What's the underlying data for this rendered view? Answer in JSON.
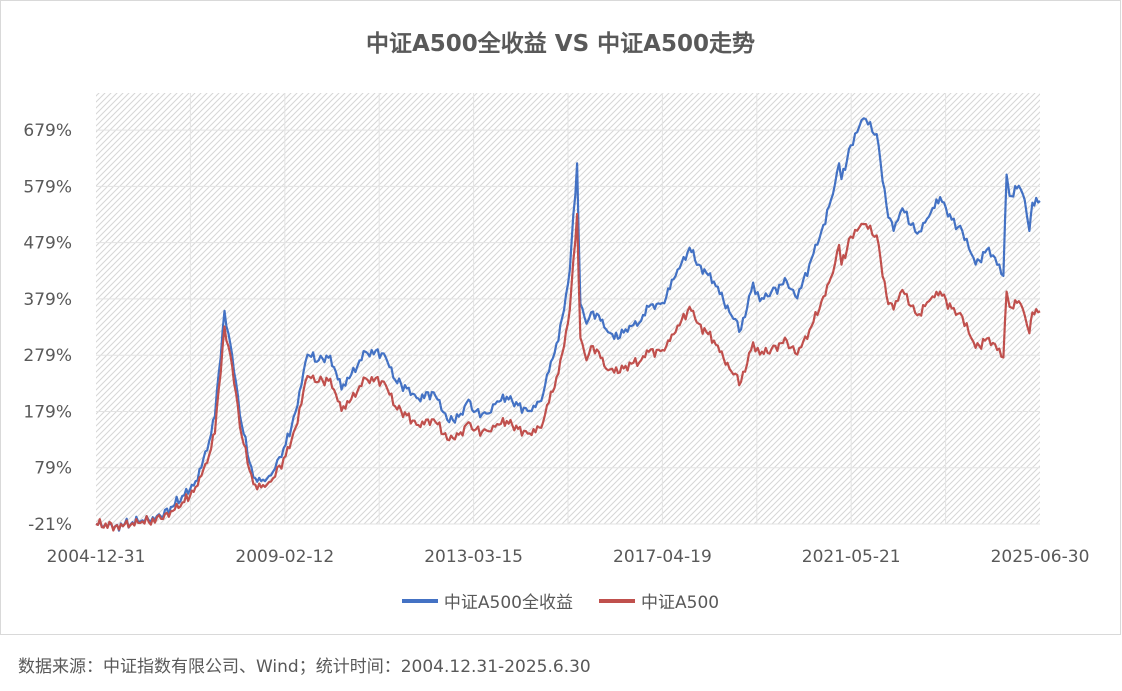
{
  "title": "中证A500全收益 VS 中证A500走势",
  "source_note": "数据来源：中证指数有限公司、Wind；统计时间：2004.12.31-2025.6.30",
  "chart_data": {
    "type": "line",
    "title": "中证A500全收益 VS 中证A500走势",
    "xlabel": "",
    "ylabel": "",
    "x_tick_labels": [
      "2004-12-31",
      "2009-02-12",
      "2013-03-15",
      "2017-04-19",
      "2021-05-21",
      "2025-06-30"
    ],
    "y_tick_labels": [
      "-21%",
      "79%",
      "179%",
      "279%",
      "379%",
      "479%",
      "579%",
      "679%"
    ],
    "y_ticks": [
      -21,
      79,
      179,
      279,
      379,
      479,
      579,
      679
    ],
    "ylim": [
      -21,
      745
    ],
    "xlim": [
      "2004-12-31",
      "2025-06-30"
    ],
    "grid": true,
    "legend_position": "bottom",
    "x": [
      "2004-12-31",
      "2005-06-01",
      "2005-12-01",
      "2006-06-01",
      "2006-12-01",
      "2007-03-01",
      "2007-06-01",
      "2007-08-01",
      "2007-10-16",
      "2007-12-01",
      "2008-03-01",
      "2008-06-01",
      "2008-09-01",
      "2008-11-04",
      "2009-02-12",
      "2009-05-01",
      "2009-08-04",
      "2009-11-01",
      "2010-02-01",
      "2010-05-01",
      "2010-07-01",
      "2010-11-08",
      "2011-04-01",
      "2011-07-01",
      "2011-10-01",
      "2012-01-01",
      "2012-05-01",
      "2012-09-01",
      "2012-12-01",
      "2013-02-01",
      "2013-03-15",
      "2013-06-25",
      "2013-09-01",
      "2013-12-01",
      "2014-03-01",
      "2014-06-01",
      "2014-09-01",
      "2014-11-01",
      "2014-12-31",
      "2015-03-01",
      "2015-04-15",
      "2015-06-12",
      "2015-07-08",
      "2015-08-26",
      "2015-10-01",
      "2015-12-01",
      "2016-01-28",
      "2016-04-01",
      "2016-07-01",
      "2016-11-01",
      "2017-01-01",
      "2017-04-19",
      "2017-08-01",
      "2017-11-20",
      "2018-02-01",
      "2018-06-01",
      "2018-10-18",
      "2019-01-03",
      "2019-04-08",
      "2019-06-01",
      "2019-09-01",
      "2019-12-31",
      "2020-03-23",
      "2020-07-13",
      "2020-10-01",
      "2020-12-31",
      "2021-02-18",
      "2021-03-09",
      "2021-05-21",
      "2021-09-01",
      "2021-12-13",
      "2022-03-01",
      "2022-04-26",
      "2022-07-05",
      "2022-10-31",
      "2023-01-31",
      "2023-04-30",
      "2023-07-31",
      "2023-10-23",
      "2024-01-01",
      "2024-02-05",
      "2024-05-20",
      "2024-09-13",
      "2024-10-08",
      "2024-11-01",
      "2025-01-13",
      "2025-03-01",
      "2025-04-07",
      "2025-05-01",
      "2025-06-30"
    ],
    "series": [
      {
        "name": "中证A500全收益",
        "color": "#4472c4",
        "values": [
          -21,
          -25,
          -17,
          -8,
          30,
          55,
          110,
          170,
          358,
          300,
          155,
          62,
          55,
          72,
          120,
          178,
          280,
          270,
          278,
          218,
          238,
          285,
          282,
          235,
          220,
          202,
          213,
          160,
          175,
          200,
          178,
          175,
          192,
          205,
          190,
          180,
          198,
          250,
          300,
          360,
          430,
          620,
          370,
          335,
          355,
          350,
          325,
          308,
          325,
          340,
          365,
          372,
          420,
          470,
          440,
          410,
          350,
          325,
          408,
          375,
          392,
          410,
          380,
          450,
          500,
          565,
          620,
          592,
          652,
          700,
          672,
          545,
          500,
          540,
          495,
          525,
          560,
          520,
          500,
          460,
          440,
          470,
          420,
          600,
          562,
          580,
          555,
          500,
          550,
          553
        ]
      },
      {
        "name": "中证A500",
        "color": "#c0504d",
        "values": [
          -21,
          -25,
          -19,
          -12,
          18,
          45,
          88,
          140,
          330,
          280,
          135,
          50,
          45,
          60,
          100,
          150,
          242,
          232,
          237,
          180,
          195,
          238,
          232,
          188,
          172,
          155,
          165,
          128,
          142,
          160,
          145,
          145,
          152,
          162,
          148,
          140,
          150,
          195,
          240,
          295,
          360,
          530,
          310,
          270,
          295,
          285,
          255,
          248,
          260,
          270,
          285,
          288,
          320,
          365,
          335,
          305,
          250,
          232,
          302,
          280,
          290,
          305,
          280,
          330,
          375,
          425,
          475,
          440,
          490,
          512,
          492,
          385,
          360,
          395,
          350,
          375,
          392,
          362,
          348,
          310,
          292,
          310,
          275,
          392,
          365,
          375,
          350,
          318,
          355,
          357
        ]
      }
    ]
  }
}
